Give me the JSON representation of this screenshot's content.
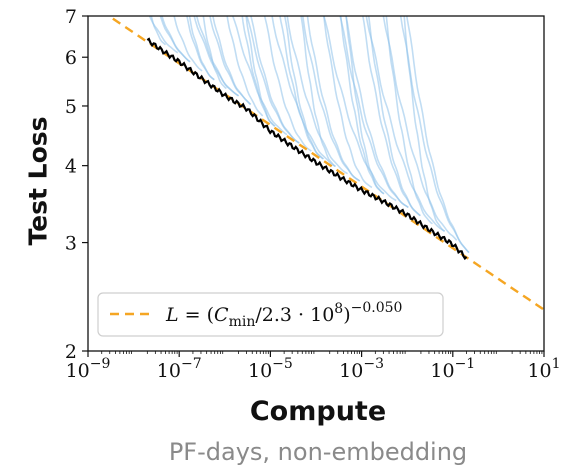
{
  "chart_data": {
    "type": "line",
    "title": "",
    "xlabel": "Compute",
    "xlabel_sub": "PF-days, non-embedding",
    "ylabel": "Test Loss",
    "x_scale": "log",
    "y_scale": "log",
    "xlim": [
      1e-09,
      10
    ],
    "ylim": [
      2,
      7
    ],
    "x_ticks": [
      {
        "base": "10",
        "exp": "−9",
        "value": 1e-09
      },
      {
        "base": "10",
        "exp": "−7",
        "value": 1e-07
      },
      {
        "base": "10",
        "exp": "−5",
        "value": 1e-05
      },
      {
        "base": "10",
        "exp": "−3",
        "value": 0.001
      },
      {
        "base": "10",
        "exp": "−1",
        "value": 0.1
      },
      {
        "base": "10",
        "exp": "1",
        "value": 10
      }
    ],
    "y_ticks": [
      {
        "label": "2",
        "value": 2
      },
      {
        "label": "3",
        "value": 3
      },
      {
        "label": "4",
        "value": 4
      },
      {
        "label": "5",
        "value": 5
      },
      {
        "label": "6",
        "value": 6
      },
      {
        "label": "7",
        "value": 7
      }
    ],
    "legend": {
      "placement": "bottom-left",
      "entry_text": "L = (Cmin/2.3 · 10^8)^−0.050"
    },
    "fit_line": {
      "formula": "L = (Cmin / 2.3e8)^-0.050",
      "coefficient": 230000000.0,
      "exponent": -0.05,
      "color": "#f5a623"
    },
    "frontier": {
      "color": "#000000",
      "x": [
        2e-08,
        5e-08,
        1e-07,
        3e-07,
        1e-06,
        3e-06,
        1e-05,
        3e-05,
        0.0001,
        0.0003,
        0.001,
        0.003,
        0.01,
        0.03,
        0.1,
        0.2
      ],
      "y": [
        6.4,
        6.1,
        5.9,
        5.55,
        5.2,
        4.95,
        4.55,
        4.3,
        4.05,
        3.85,
        3.65,
        3.5,
        3.33,
        3.15,
        2.98,
        2.83
      ]
    },
    "runs": {
      "color": "#8ec1ea",
      "description_count": 40
    },
    "grid": false
  }
}
